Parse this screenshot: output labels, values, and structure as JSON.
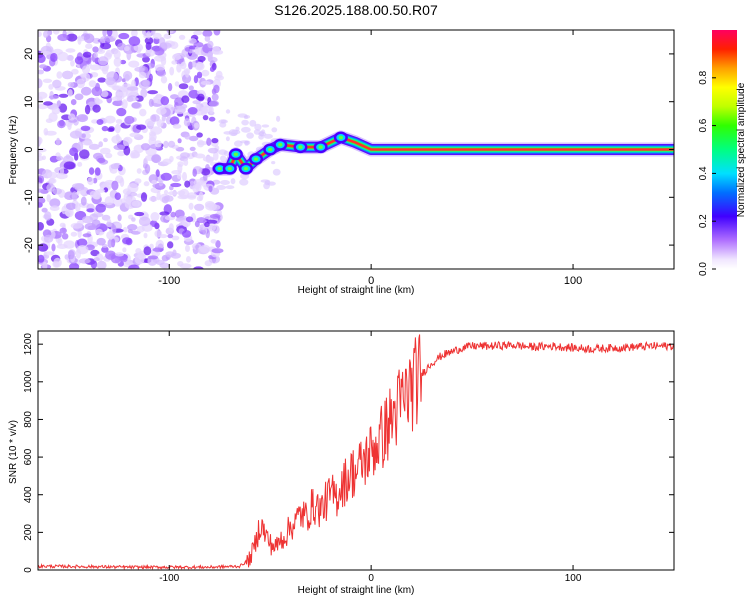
{
  "title": "S126.2025.188.00.50.R07",
  "chart_data": [
    {
      "type": "heatmap",
      "xlabel": "Height of straight line (km)",
      "ylabel": "Frequency (Hz)",
      "xlim": [
        -165,
        150
      ],
      "ylim": [
        -25,
        25
      ],
      "x_ticks": [
        -100,
        0,
        100
      ],
      "y_ticks": [
        -20,
        -10,
        0,
        10,
        20
      ],
      "colorbar": {
        "label": "Normalized spectral amplitude",
        "range": [
          0,
          1
        ],
        "ticks": [
          0.0,
          0.2,
          0.4,
          0.6,
          0.8
        ],
        "tick_labels": [
          "0.0",
          "0.2",
          "0.4",
          "0.6",
          "0.8"
        ]
      },
      "noise_region_x": [
        -165,
        -75
      ],
      "ridge": [
        {
          "x": -75,
          "y": -4
        },
        {
          "x": -70,
          "y": -4
        },
        {
          "x": -67,
          "y": -1
        },
        {
          "x": -62,
          "y": -4
        },
        {
          "x": -57,
          "y": -2
        },
        {
          "x": -50,
          "y": 0
        },
        {
          "x": -45,
          "y": 1
        },
        {
          "x": -35,
          "y": 0.5
        },
        {
          "x": -25,
          "y": 0.5
        },
        {
          "x": -15,
          "y": 2.5
        },
        {
          "x": -8,
          "y": 1.5
        },
        {
          "x": 0,
          "y": 0
        },
        {
          "x": 150,
          "y": 0
        }
      ]
    },
    {
      "type": "line",
      "xlabel": "Height of straight line (km)",
      "ylabel": "SNR (10 * v/v)",
      "xlim": [
        -165,
        150
      ],
      "ylim": [
        0,
        1270
      ],
      "x_ticks": [
        -100,
        0,
        100
      ],
      "y_ticks": [
        0,
        200,
        400,
        600,
        800,
        1000,
        1200
      ],
      "series": [
        {
          "color": "#ee3333",
          "x": [
            -165,
            -140,
            -120,
            -100,
            -80,
            -65,
            -60,
            -57,
            -55,
            -52,
            -50,
            -47,
            -45,
            -42,
            -40,
            -37,
            -35,
            -32,
            -30,
            -27,
            -25,
            -22,
            -20,
            -17,
            -15,
            -12,
            -10,
            -7,
            -5,
            -2,
            0,
            5,
            10,
            15,
            20,
            25,
            30,
            35,
            40,
            45,
            50,
            60,
            70,
            80,
            90,
            100,
            110,
            120,
            130,
            140,
            150
          ],
          "values": [
            20,
            18,
            15,
            15,
            15,
            20,
            60,
            150,
            250,
            180,
            140,
            120,
            160,
            190,
            230,
            260,
            300,
            280,
            330,
            340,
            320,
            370,
            400,
            390,
            450,
            480,
            520,
            520,
            560,
            600,
            630,
            700,
            800,
            890,
            970,
            1040,
            1100,
            1140,
            1160,
            1180,
            1190,
            1190,
            1195,
            1185,
            1190,
            1180,
            1175,
            1180,
            1185,
            1190,
            1190
          ]
        }
      ]
    }
  ]
}
